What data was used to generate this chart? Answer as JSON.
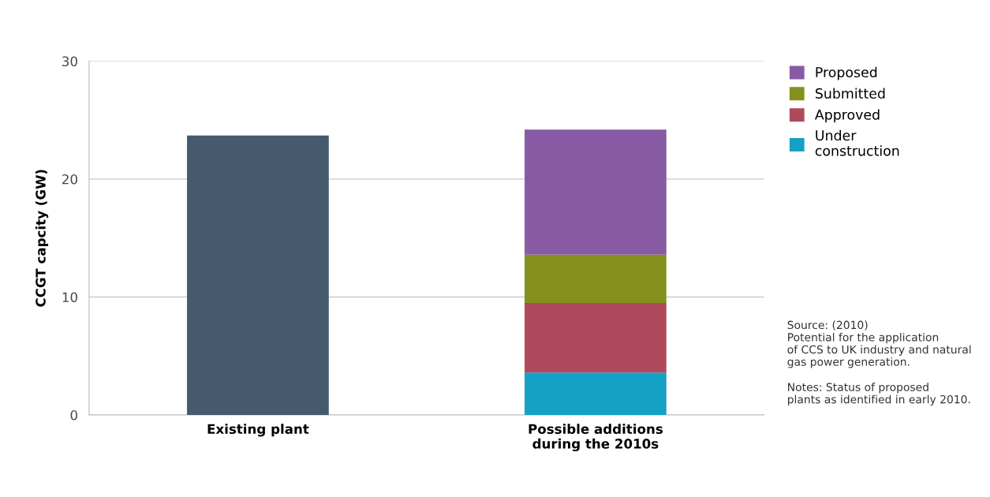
{
  "chart_data": {
    "type": "bar",
    "stacked": true,
    "ylabel": "CCGT capcity (GW)",
    "categories": [
      "Existing plant",
      "Possible additions\nduring the 2010s"
    ],
    "series": [
      {
        "color": "#455a6e",
        "values": [
          23.7,
          null
        ]
      },
      {
        "name": "Under\nconstruction",
        "color": "#15a0c5",
        "values": [
          null,
          3.6
        ]
      },
      {
        "name": "Approved",
        "color": "#af4a5c",
        "values": [
          null,
          5.9
        ]
      },
      {
        "name": "Submitted",
        "color": "#84921d",
        "values": [
          null,
          4.1
        ]
      },
      {
        "name": "Proposed",
        "color": "#8a5ba5",
        "values": [
          null,
          10.6
        ]
      }
    ],
    "ylim": [
      0,
      30
    ],
    "yticks": [
      0,
      10,
      20,
      30
    ],
    "grid": "y",
    "legend": "top right",
    "annotations": [
      "Source: (2010)\nPotential for the application\nof CCS to UK industry and natural\ngas power generation.",
      "Notes: Status of proposed\nplants as identified in early 2010."
    ]
  }
}
